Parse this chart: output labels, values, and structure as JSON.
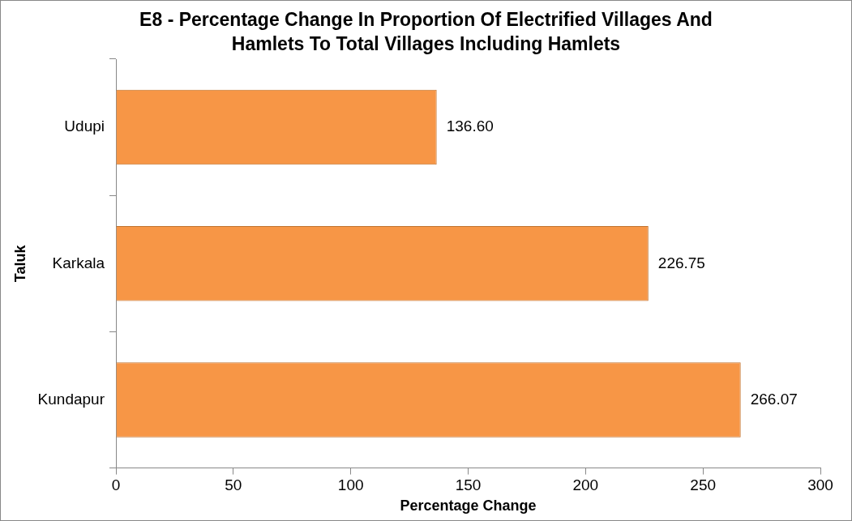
{
  "chart_data": {
    "type": "bar",
    "orientation": "horizontal",
    "title": "E8 - Percentage Change In Proportion Of Electrified Villages And Hamlets To Total Villages Including Hamlets",
    "xlabel": "Percentage Change",
    "ylabel": "Taluk",
    "categories": [
      "Udupi",
      "Karkala",
      "Kundapur"
    ],
    "values": [
      136.6,
      226.75,
      266.07
    ],
    "value_labels": [
      "136.60",
      "226.75",
      "266.07"
    ],
    "color": "#f79646",
    "xlim": [
      0,
      300
    ],
    "xticks": [
      0,
      50,
      100,
      150,
      200,
      250,
      300
    ],
    "grid": false,
    "legend": false
  }
}
